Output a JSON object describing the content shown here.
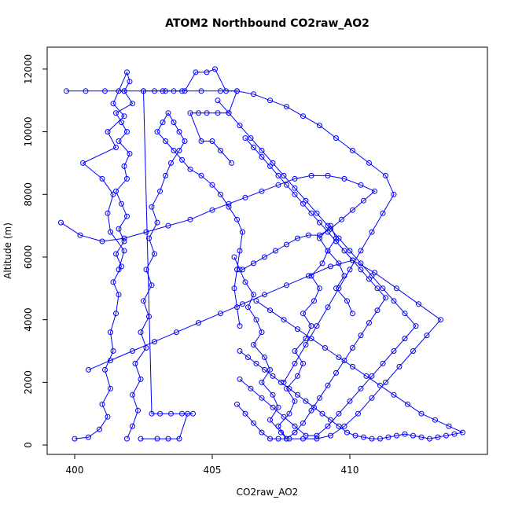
{
  "chart_data": {
    "type": "line",
    "title": "ATOM2 Northbound CO2raw_AO2",
    "xlabel": "CO2raw_AO2",
    "ylabel": "Altitude (m)",
    "xlim": [
      399,
      415
    ],
    "ylim": [
      -300,
      12700
    ],
    "x_ticks": [
      400,
      405,
      410
    ],
    "y_ticks": [
      0,
      2000,
      4000,
      6000,
      8000,
      10000,
      12000
    ],
    "line_color": "#0000FF",
    "marker": "open-circle",
    "grid": false,
    "series": [
      {
        "x": [
          400.0,
          400.5,
          400.9,
          401.2,
          401.0,
          401.3,
          401.1,
          401.4,
          401.3,
          401.5,
          401.6,
          401.4,
          401.7,
          401.5,
          401.8,
          401.6,
          401.9,
          401.7,
          401.5,
          401.9,
          401.8,
          402.0,
          401.6,
          401.9,
          401.7,
          401.5,
          402.1,
          401.8,
          402.0,
          401.9,
          401.6,
          401.4,
          401.8,
          401.2,
          401.5,
          400.3,
          401.0,
          401.4,
          401.2,
          401.3,
          401.8,
          401.6
        ],
        "y": [
          200,
          250,
          500,
          900,
          1300,
          1800,
          2400,
          3000,
          3600,
          4200,
          4800,
          5200,
          5700,
          6100,
          6500,
          6900,
          7300,
          7700,
          8100,
          8500,
          8900,
          9300,
          9700,
          10000,
          10300,
          10600,
          10900,
          11300,
          11600,
          11900,
          11300,
          10900,
          10500,
          10000,
          9500,
          9000,
          8500,
          8000,
          7400,
          6800,
          6200,
          5600
        ]
      },
      {
        "x": [
          401.9,
          402.1,
          402.3,
          402.1,
          402.4,
          402.2,
          402.6,
          402.4,
          402.7,
          402.5,
          402.8,
          402.6,
          402.9,
          402.7,
          403.0,
          402.8,
          403.1,
          403.3,
          403.5,
          403.8,
          404.0,
          403.8,
          403.6,
          403.4,
          403.2,
          403.0,
          403.3,
          403.6,
          403.9,
          404.2,
          404.6,
          405.0,
          405.3,
          405.6,
          405.9,
          406.1,
          406.0,
          405.9,
          405.8,
          405.9,
          406.0
        ],
        "y": [
          200,
          600,
          1100,
          1600,
          2100,
          2600,
          3100,
          3600,
          4100,
          4600,
          5100,
          5600,
          6100,
          6600,
          7100,
          7600,
          8100,
          8600,
          9000,
          9400,
          9700,
          10000,
          10300,
          10600,
          10300,
          10000,
          9700,
          9400,
          9100,
          8800,
          8600,
          8300,
          8000,
          7600,
          7200,
          6800,
          6200,
          5600,
          5000,
          4400,
          3800
        ]
      },
      {
        "x": [
          402.4,
          403.0,
          403.4,
          403.8,
          404.1,
          404.3,
          403.9,
          403.5,
          403.1,
          402.8,
          402.5,
          402.9,
          403.3,
          403.6,
          404.0,
          404.4,
          404.8,
          405.1,
          405.5,
          405.9,
          405.6,
          405.2,
          404.8,
          404.5,
          404.2,
          404.6,
          405.0,
          405.3,
          405.7
        ],
        "y": [
          200,
          200,
          200,
          200,
          1000,
          1000,
          1000,
          1000,
          1000,
          1000,
          11300,
          11300,
          11300,
          11300,
          11300,
          11900,
          11900,
          12000,
          11300,
          11300,
          10600,
          10600,
          10600,
          10600,
          10600,
          9700,
          9700,
          9400,
          9000
        ]
      },
      {
        "x": [
          405.8,
          406.0,
          406.2,
          406.5,
          406.3,
          406.6,
          406.8,
          406.5,
          406.9,
          407.1,
          406.8,
          407.2,
          407.4,
          407.1,
          407.5,
          407.7,
          407.4,
          407.8,
          408.0,
          407.7,
          408.1,
          408.3,
          408.0,
          408.4,
          408.6,
          408.3,
          408.7,
          408.9,
          408.6,
          409.0,
          409.2,
          408.9,
          409.3,
          409.5,
          409.2,
          409.6,
          409.8,
          409.5,
          409.9,
          410.1
        ],
        "y": [
          6000,
          5600,
          5200,
          4800,
          4400,
          4000,
          3600,
          3200,
          2800,
          2400,
          2000,
          1600,
          1200,
          800,
          400,
          200,
          600,
          1000,
          1400,
          1800,
          2200,
          2600,
          3000,
          3400,
          3800,
          4200,
          4600,
          5000,
          5400,
          5800,
          6200,
          6600,
          7000,
          6600,
          6200,
          5800,
          5400,
          5000,
          4600,
          4200
        ]
      },
      {
        "x": [
          406.0,
          406.3,
          406.6,
          406.9,
          407.2,
          407.5,
          407.8,
          408.1,
          408.4,
          408.7,
          409.0,
          409.3,
          409.6,
          409.9,
          410.2,
          410.5,
          410.8,
          411.1,
          411.4,
          411.7,
          412.0,
          412.3,
          412.6,
          412.9,
          413.2,
          413.5,
          413.8,
          414.1,
          413.6,
          413.1,
          412.6,
          412.1,
          411.6,
          411.1,
          410.6,
          410.1,
          409.6,
          409.1,
          408.6,
          408.1,
          407.6,
          407.1,
          406.6
        ],
        "y": [
          3000,
          2800,
          2600,
          2400,
          2200,
          2000,
          1800,
          1600,
          1400,
          1200,
          1000,
          800,
          600,
          400,
          300,
          250,
          200,
          200,
          250,
          300,
          350,
          300,
          250,
          200,
          250,
          300,
          350,
          400,
          600,
          800,
          1000,
          1300,
          1600,
          1900,
          2200,
          2500,
          2800,
          3100,
          3400,
          3700,
          4000,
          4300,
          4600
        ]
      },
      {
        "x": [
          406.2,
          406.5,
          406.8,
          407.1,
          407.4,
          407.7,
          408.0,
          408.3,
          408.6,
          408.9,
          409.2,
          409.5,
          409.8,
          410.1,
          410.4,
          410.7,
          411.0,
          411.3,
          411.0,
          410.7,
          410.4,
          410.1,
          409.8,
          409.5,
          409.2,
          408.9,
          408.6,
          408.3,
          408.0,
          407.7,
          407.4,
          407.1,
          406.8,
          406.5,
          406.2,
          405.9
        ],
        "y": [
          9800,
          9500,
          9200,
          8900,
          8600,
          8300,
          8000,
          7700,
          7400,
          7100,
          6800,
          6500,
          6200,
          5900,
          5600,
          5300,
          5000,
          4700,
          4300,
          3900,
          3500,
          3100,
          2700,
          2300,
          1900,
          1500,
          1100,
          700,
          400,
          200,
          200,
          200,
          400,
          700,
          1000,
          1300
        ]
      },
      {
        "x": [
          405.2,
          405.6,
          406.0,
          406.4,
          406.8,
          407.2,
          407.6,
          408.0,
          408.4,
          408.8,
          409.2,
          409.6,
          410.0,
          410.4,
          410.8,
          411.2,
          411.6,
          412.0,
          412.4,
          412.0,
          411.6,
          411.2,
          410.8,
          410.4,
          410.0,
          409.6,
          409.2,
          408.8,
          408.4,
          408.0,
          407.6,
          407.2,
          406.8,
          406.4,
          406.0
        ],
        "y": [
          11000,
          10600,
          10200,
          9800,
          9400,
          9000,
          8600,
          8200,
          7800,
          7400,
          7000,
          6600,
          6200,
          5800,
          5400,
          5000,
          4600,
          4200,
          3800,
          3400,
          3000,
          2600,
          2200,
          1800,
          1400,
          1000,
          600,
          300,
          300,
          600,
          900,
          1200,
          1500,
          1800,
          2100
        ]
      },
      {
        "x": [
          399.5,
          400.2,
          401.0,
          401.8,
          402.6,
          403.4,
          404.2,
          405.0,
          405.6,
          406.2,
          406.8,
          407.4,
          408.0,
          408.6,
          409.2,
          409.8,
          410.4,
          410.9,
          410.5,
          410.1,
          409.7,
          409.3,
          408.9,
          408.5,
          408.1,
          407.7,
          407.3,
          406.9,
          406.5,
          406.1
        ],
        "y": [
          7100,
          6700,
          6500,
          6600,
          6800,
          7000,
          7200,
          7500,
          7700,
          7900,
          8100,
          8300,
          8500,
          8600,
          8600,
          8500,
          8300,
          8100,
          7800,
          7500,
          7200,
          6900,
          6700,
          6700,
          6600,
          6400,
          6200,
          6000,
          5800,
          5600
        ]
      },
      {
        "x": [
          399.7,
          400.4,
          401.1,
          401.8,
          402.5,
          403.2,
          403.9,
          404.6,
          405.3,
          405.9,
          406.5,
          407.1,
          407.7,
          408.3,
          408.9,
          409.5,
          410.1,
          410.7,
          411.3,
          411.6,
          411.2,
          410.8,
          410.4,
          410.0,
          409.6,
          409.2,
          408.8,
          408.4,
          408.0,
          407.6
        ],
        "y": [
          11300,
          11300,
          11300,
          11300,
          11300,
          11300,
          11300,
          11300,
          11300,
          11300,
          11200,
          11000,
          10800,
          10500,
          10200,
          9800,
          9400,
          9000,
          8600,
          8000,
          7400,
          6800,
          6200,
          5600,
          5000,
          4400,
          3800,
          3200,
          2600,
          2000
        ]
      },
      {
        "x": [
          400.5,
          401.3,
          402.1,
          402.9,
          403.7,
          404.5,
          405.3,
          406.1,
          406.9,
          407.7,
          408.5,
          409.3,
          410.1,
          410.9,
          411.7,
          412.5,
          413.3,
          412.8,
          412.3,
          411.8,
          411.3,
          410.8,
          410.3,
          409.8,
          409.3,
          408.8,
          408.3,
          407.8
        ],
        "y": [
          2400,
          2700,
          3000,
          3300,
          3600,
          3900,
          4200,
          4500,
          4800,
          5100,
          5400,
          5700,
          5900,
          5500,
          5000,
          4500,
          4000,
          3500,
          3000,
          2500,
          2000,
          1500,
          1000,
          600,
          300,
          200,
          200,
          200
        ]
      }
    ]
  }
}
